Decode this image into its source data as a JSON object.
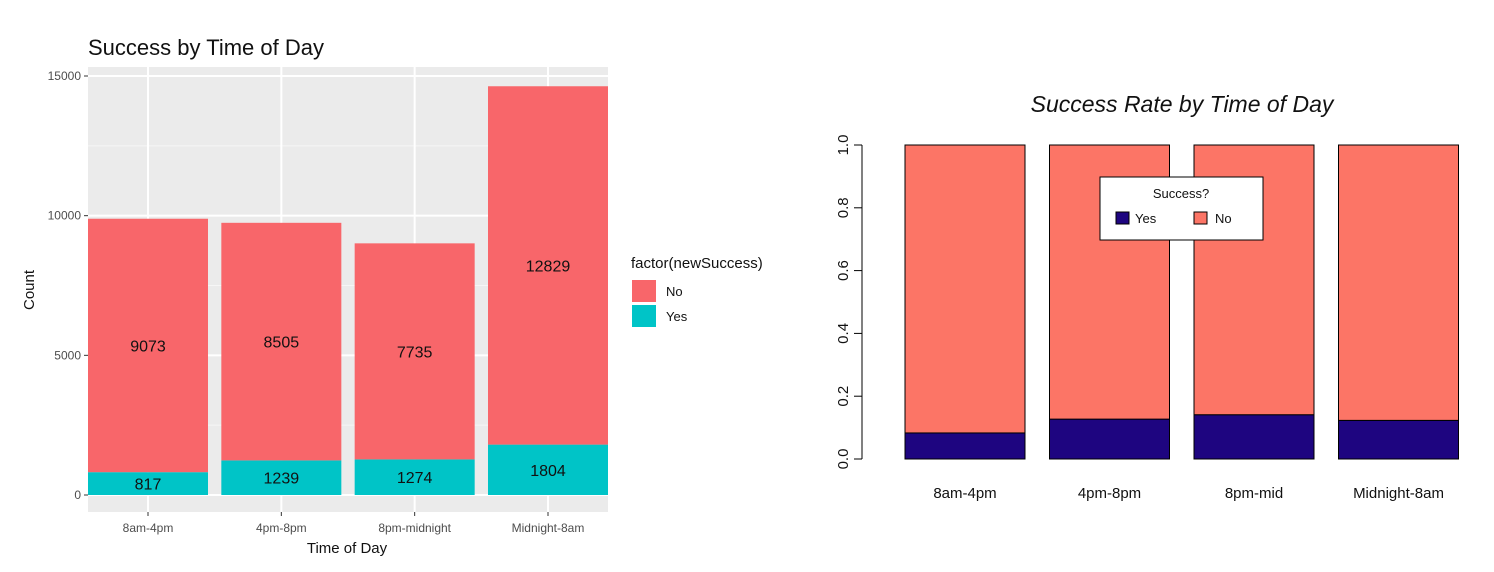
{
  "chart_data": [
    {
      "type": "bar",
      "stacked": true,
      "title": "Success by Time of Day",
      "xlabel": "Time of Day",
      "ylabel": "Count",
      "ylim": [
        0,
        15000
      ],
      "yticks": [
        0,
        5000,
        10000,
        15000
      ],
      "grid": true,
      "legend_position": "right",
      "legend_title": "factor(newSuccess)",
      "categories": [
        "8am-4pm",
        "4pm-8pm",
        "8pm-midnight",
        "Midnight-8am"
      ],
      "series": [
        {
          "name": "Yes",
          "values": [
            817,
            1239,
            1274,
            1804
          ],
          "color": "#00c4c7"
        },
        {
          "name": "No",
          "values": [
            9073,
            8505,
            7735,
            12829
          ],
          "color": "#f8666a"
        }
      ],
      "legend_order": [
        "No",
        "Yes"
      ]
    },
    {
      "type": "bar",
      "stacked": true,
      "title": "Success Rate by Time of Day",
      "ylim": [
        0,
        1
      ],
      "yticks": [
        "0.0",
        "0.2",
        "0.4",
        "0.6",
        "0.8",
        "1.0"
      ],
      "grid": false,
      "legend_position": "top-center",
      "legend_title": "Success?",
      "categories": [
        "8am-4pm",
        "4pm-8pm",
        "8pm-mid",
        "Midnight-8am"
      ],
      "series": [
        {
          "name": "Yes",
          "values": [
            0.083,
            0.127,
            0.141,
            0.123
          ],
          "color": "#1e0580"
        },
        {
          "name": "No",
          "values": [
            0.917,
            0.873,
            0.859,
            0.877
          ],
          "color": "#fc7566"
        }
      ],
      "legend_order": [
        "Yes",
        "No"
      ]
    }
  ]
}
